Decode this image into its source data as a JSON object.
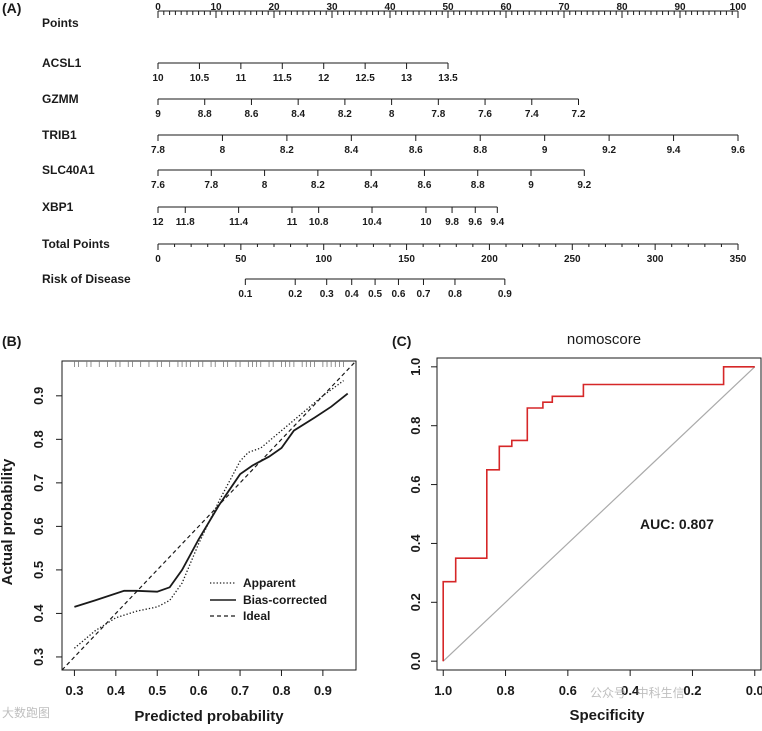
{
  "watermark": {
    "left": "大数跑图",
    "right": "公众号 · 中科生信"
  },
  "chart_data": [
    {
      "type": "nomogram",
      "panel_label": "(A)",
      "rows": [
        {
          "label": "Points",
          "min": 0,
          "max": 100,
          "major": [
            0,
            10,
            20,
            30,
            40,
            50,
            60,
            70,
            80,
            90,
            100
          ],
          "ticks": [
            "0",
            "10",
            "20",
            "30",
            "40",
            "50",
            "60",
            "70",
            "80",
            "90",
            "100"
          ],
          "minor_step": 1
        },
        {
          "label": "ACSL1",
          "range": [
            10,
            13.5
          ],
          "points_range": [
            0,
            50
          ],
          "ticks": [
            "10",
            "10.5",
            "11",
            "11.5",
            "12",
            "12.5",
            "13",
            "13.5"
          ]
        },
        {
          "label": "GZMM",
          "range": [
            9,
            7.2
          ],
          "points_range": [
            0,
            72.5
          ],
          "ticks": [
            "9",
            "8.8",
            "8.6",
            "8.4",
            "8.2",
            "8",
            "7.8",
            "7.6",
            "7.4",
            "7.2"
          ]
        },
        {
          "label": "TRIB1",
          "range": [
            7.8,
            9.6
          ],
          "points_range": [
            0,
            100
          ],
          "ticks": [
            "7.8",
            "8",
            "8.2",
            "8.4",
            "8.6",
            "8.8",
            "9",
            "9.2",
            "9.4",
            "9.6"
          ]
        },
        {
          "label": "SLC40A1",
          "range": [
            7.6,
            9.2
          ],
          "points_range": [
            0,
            73.5
          ],
          "ticks": [
            "7.6",
            "7.8",
            "8",
            "8.2",
            "8.4",
            "8.6",
            "8.8",
            "9",
            "9.2"
          ]
        },
        {
          "label": "XBP1",
          "range": [
            12,
            9.4
          ],
          "points_range": [
            0,
            58.5
          ],
          "ticks": [
            "12",
            "11.8",
            "11.4",
            "11",
            "10.8",
            "10.4",
            "10",
            "9.8",
            "9.6",
            "9.4"
          ],
          "tick_points": [
            0,
            4.7,
            13.9,
            23.1,
            27.7,
            36.9,
            46.2,
            50.7,
            54.7,
            58.5
          ]
        },
        {
          "label": "Total Points",
          "min": 0,
          "max": 350,
          "major": [
            0,
            50,
            100,
            150,
            200,
            250,
            300,
            350
          ],
          "ticks": [
            "0",
            "50",
            "100",
            "150",
            "200",
            "250",
            "300",
            "350"
          ],
          "minor_step": 10
        },
        {
          "label": "Risk of Disease",
          "values": [
            0.1,
            0.2,
            0.3,
            0.4,
            0.5,
            0.6,
            0.7,
            0.8,
            0.9
          ],
          "ticks": [
            "0.1",
            "0.2",
            "0.3",
            "0.4",
            "0.5",
            "0.6",
            "0.7",
            "0.8",
            "0.9"
          ],
          "total_points": [
            52.7,
            82.8,
            101.8,
            116.9,
            131.0,
            145.1,
            160.2,
            179.2,
            209.3
          ]
        }
      ]
    },
    {
      "type": "line",
      "panel_label": "(B)",
      "xlabel": "Predicted probability",
      "ylabel": "Actual probability",
      "xlim": [
        0.27,
        0.98
      ],
      "ylim": [
        0.27,
        0.98
      ],
      "xticks": [
        0.3,
        0.4,
        0.5,
        0.6,
        0.7,
        0.8,
        0.9
      ],
      "xtick_labels": [
        "0.3",
        "0.4",
        "0.5",
        "0.6",
        "0.7",
        "0.8",
        "0.9"
      ],
      "yticks": [
        0.3,
        0.4,
        0.5,
        0.6,
        0.7,
        0.8,
        0.9
      ],
      "ytick_labels": [
        "0.3",
        "0.4",
        "0.5",
        "0.6",
        "0.7",
        "0.8",
        "0.9"
      ],
      "legend": [
        "Apparent",
        "Bias-corrected",
        "Ideal"
      ],
      "legend_position": "bottom-right",
      "rug": [
        0.3,
        0.31,
        0.33,
        0.34,
        0.36,
        0.38,
        0.4,
        0.41,
        0.43,
        0.44,
        0.46,
        0.48,
        0.5,
        0.51,
        0.53,
        0.55,
        0.56,
        0.57,
        0.58,
        0.6,
        0.61,
        0.63,
        0.64,
        0.66,
        0.67,
        0.69,
        0.7,
        0.72,
        0.73,
        0.74,
        0.75,
        0.77,
        0.78,
        0.8,
        0.81,
        0.82,
        0.83,
        0.85,
        0.86,
        0.87,
        0.88,
        0.9,
        0.91,
        0.92,
        0.93,
        0.94,
        0.95
      ],
      "series": [
        {
          "name": "Apparent",
          "style": "dotted",
          "x": [
            0.3,
            0.35,
            0.4,
            0.45,
            0.5,
            0.53,
            0.56,
            0.6,
            0.65,
            0.7,
            0.72,
            0.75,
            0.8,
            0.85,
            0.9,
            0.95
          ],
          "y": [
            0.32,
            0.36,
            0.39,
            0.405,
            0.415,
            0.43,
            0.47,
            0.56,
            0.66,
            0.75,
            0.77,
            0.78,
            0.82,
            0.86,
            0.9,
            0.935
          ]
        },
        {
          "name": "Bias-corrected",
          "style": "solid",
          "x": [
            0.3,
            0.35,
            0.42,
            0.45,
            0.5,
            0.53,
            0.56,
            0.6,
            0.65,
            0.7,
            0.73,
            0.77,
            0.8,
            0.83,
            0.88,
            0.92,
            0.96
          ],
          "y": [
            0.415,
            0.43,
            0.452,
            0.452,
            0.45,
            0.46,
            0.5,
            0.57,
            0.65,
            0.72,
            0.74,
            0.76,
            0.78,
            0.82,
            0.85,
            0.875,
            0.905
          ]
        },
        {
          "name": "Ideal",
          "style": "dashed",
          "x": [
            0.27,
            0.98
          ],
          "y": [
            0.27,
            0.98
          ]
        }
      ]
    },
    {
      "type": "line",
      "panel_label": "(C)",
      "title": "nomoscore",
      "xlabel": "Specificity",
      "ylabel": "Sensitivity",
      "xlim": [
        1.02,
        -0.02
      ],
      "ylim": [
        -0.03,
        1.03
      ],
      "xticks": [
        1.0,
        0.8,
        0.6,
        0.4,
        0.2,
        0.0
      ],
      "xtick_labels": [
        "1.0",
        "0.8",
        "0.6",
        "0.4",
        "0.2",
        "0.0"
      ],
      "yticks": [
        0.0,
        0.2,
        0.4,
        0.6,
        0.8,
        1.0
      ],
      "ytick_labels": [
        "0.0",
        "0.2",
        "0.4",
        "0.6",
        "0.8",
        "1.0"
      ],
      "annotation": "AUC: 0.807",
      "series": [
        {
          "name": "ROC",
          "color": "#d62728",
          "x": [
            1.0,
            1.0,
            0.96,
            0.96,
            0.86,
            0.86,
            0.82,
            0.82,
            0.78,
            0.78,
            0.73,
            0.73,
            0.68,
            0.68,
            0.65,
            0.65,
            0.55,
            0.55,
            0.45,
            0.45,
            0.1,
            0.1,
            0.0
          ],
          "y": [
            0.0,
            0.27,
            0.27,
            0.35,
            0.35,
            0.65,
            0.65,
            0.73,
            0.73,
            0.75,
            0.75,
            0.86,
            0.86,
            0.88,
            0.88,
            0.9,
            0.9,
            0.94,
            0.94,
            0.94,
            0.94,
            1.0,
            1.0
          ]
        },
        {
          "name": "reference",
          "color": "#aaaaaa",
          "x": [
            1.0,
            0.0
          ],
          "y": [
            0.0,
            1.0
          ]
        }
      ]
    }
  ]
}
